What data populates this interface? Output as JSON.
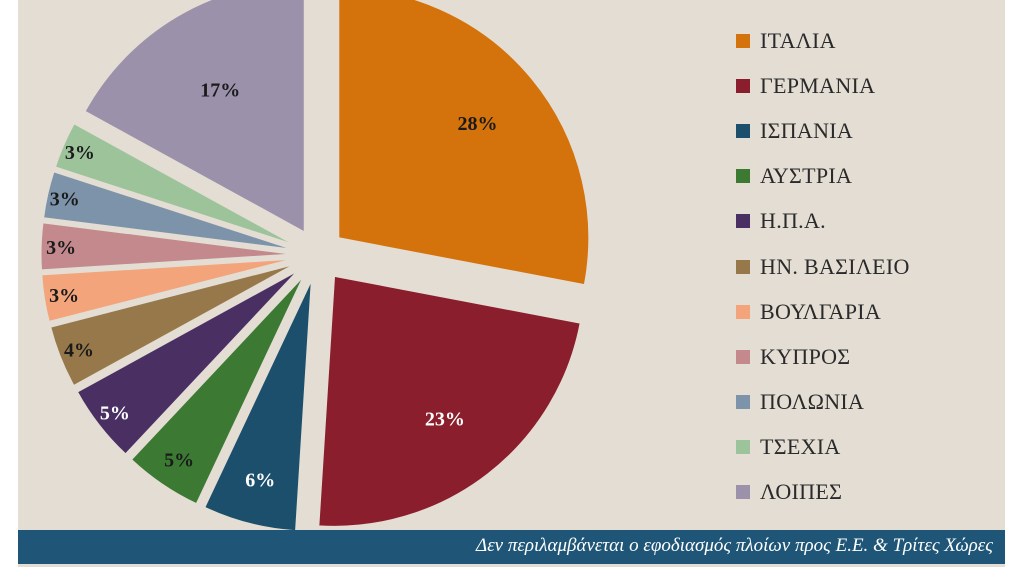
{
  "chart_data": {
    "type": "pie",
    "title": "",
    "categories": [
      "ΙΤΑΛΙΑ",
      "ΓΕΡΜΑΝΙΑ",
      "ΙΣΠΑΝΙΑ",
      "ΑΥΣΤΡΙΑ",
      "Η.Π.Α.",
      "ΗΝ. ΒΑΣΙΛΕΙΟ",
      "ΒΟΥΛΓΑΡΙΑ",
      "ΚΥΠΡΟΣ",
      "ΠΟΛΩΝΙΑ",
      "ΤΣΕΧΙΑ",
      "ΛΟΙΠΕΣ"
    ],
    "values": [
      28,
      23,
      6,
      5,
      5,
      4,
      3,
      3,
      3,
      3,
      17
    ],
    "labels": [
      "28%",
      "23%",
      "6%",
      "5%",
      "5%",
      "4%",
      "3%",
      "3%",
      "3%",
      "3%",
      "17%"
    ],
    "colors": [
      "#d4720c",
      "#8b1e2c",
      "#1b4f6c",
      "#3c7a34",
      "#4a2f63",
      "#96784a",
      "#f3a47a",
      "#c3898d",
      "#7d93aa",
      "#9dc39b",
      "#9b91ab"
    ],
    "label_colors": [
      "#1a1a1a",
      "#ffffff",
      "#ffffff",
      "#1a1a1a",
      "#ffffff",
      "#1a1a1a",
      "#1a1a1a",
      "#1a1a1a",
      "#1a1a1a",
      "#1a1a1a",
      "#1a1a1a"
    ],
    "legend_position": "right",
    "exploded": true
  },
  "footnote": "Δεν περιλαμβάνεται ο εφοδιασμός πλοίων προς Ε.Ε. & Τρίτες Χώρες"
}
